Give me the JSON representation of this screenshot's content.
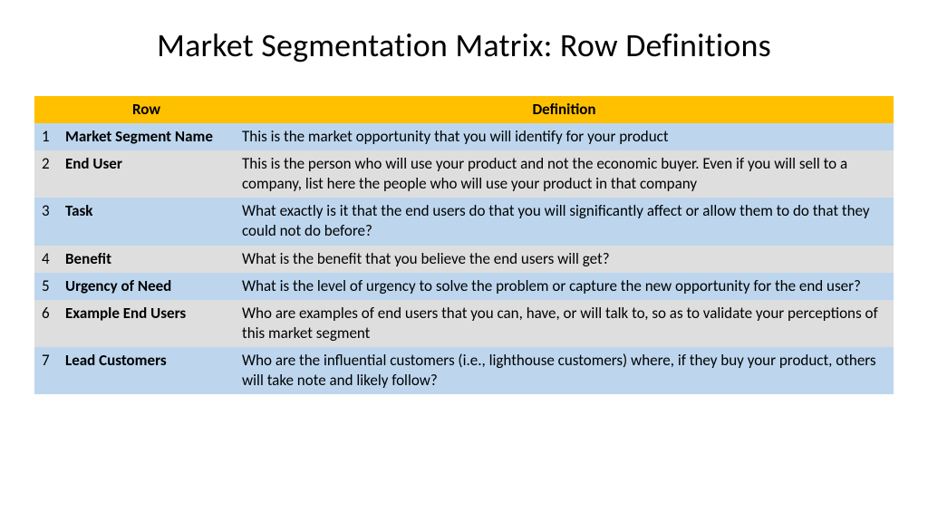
{
  "title": "Market Segmentation Matrix: Row Definitions",
  "table": {
    "header_bg": "#ffc000",
    "row_odd_bg": "#bdd6ee",
    "row_even_bg": "#dedede",
    "columns": [
      "",
      "Row",
      "Definition"
    ],
    "rows": [
      {
        "num": "1",
        "name": "Market Segment Name",
        "def": "This is the market opportunity that you will identify for your product"
      },
      {
        "num": "2",
        "name": "End User",
        "def": "This is the person who will use your product and not the economic buyer. Even if you will sell to a company, list here the people who will use your product in that company"
      },
      {
        "num": "3",
        "name": "Task",
        "def": "What exactly is it that the end users do that you will significantly affect or allow them to do that they could not do before?"
      },
      {
        "num": "4",
        "name": "Benefit",
        "def": "What is the benefit that you believe the end users will get?"
      },
      {
        "num": "5",
        "name": "Urgency of Need",
        "def": "What is the level of urgency to solve the problem or capture the new opportunity for the end user?"
      },
      {
        "num": "6",
        "name": "Example End Users",
        "def": "Who are examples of end users that you can, have, or will talk to, so as to validate your perceptions of this market segment"
      },
      {
        "num": "7",
        "name": "Lead Customers",
        "def": "Who are the influential customers (i.e., lighthouse customers) where, if they buy your product, others will take note and likely follow?"
      }
    ]
  }
}
